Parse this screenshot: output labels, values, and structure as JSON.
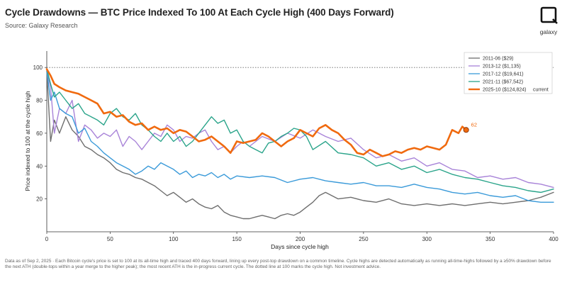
{
  "header": {
    "title": "Cycle Drawdowns — BTC Price Indexed To 100 At Each Cycle High (400 Days Forward)",
    "subtitle": "Source: Galaxy Research",
    "logo_text": "galaxy"
  },
  "footnote": "Data as of Sep 2, 2025 · Each Bitcoin cycle's price is set to 100 at its all-time high and traced 400 days forward, lining up every post-top drawdown on a common timeline. Cycle highs are detected automatically as running all-time-highs followed by a ≥50% drawdown before the next ATH (double-tops within a year merge to the higher peak); the most recent ATH is the in-progress current cycle. The dotted line at 100 marks the cycle high. Not investment advice.",
  "chart_data": {
    "type": "line",
    "xlabel": "Days since cycle high",
    "ylabel": "Price indexed to 100 at the cycle high",
    "xlim": [
      0,
      400
    ],
    "ylim": [
      0,
      110
    ],
    "xticks": [
      0,
      50,
      100,
      150,
      200,
      250,
      300,
      350,
      400
    ],
    "yticks": [
      20,
      40,
      60,
      80,
      100
    ],
    "reference_line": 100,
    "grid": false,
    "legend_position": "top-right",
    "legend_suffix": "current",
    "end_label": {
      "series": "2025-10 ($124,824)",
      "x": 331,
      "y": 62,
      "text": "62"
    },
    "series": [
      {
        "name": "2011-06 ($29)",
        "color": "#6e6e6e",
        "width": 1.4,
        "x": [
          0,
          3,
          6,
          10,
          15,
          20,
          25,
          30,
          35,
          40,
          45,
          50,
          55,
          60,
          65,
          70,
          75,
          80,
          85,
          90,
          95,
          100,
          105,
          110,
          115,
          120,
          125,
          130,
          135,
          140,
          145,
          150,
          155,
          160,
          165,
          170,
          175,
          180,
          185,
          190,
          195,
          200,
          205,
          210,
          215,
          220,
          225,
          230,
          240,
          250,
          260,
          270,
          280,
          290,
          300,
          310,
          320,
          330,
          340,
          350,
          360,
          370,
          380,
          390,
          400
        ],
        "y": [
          98,
          55,
          68,
          60,
          70,
          62,
          58,
          52,
          50,
          47,
          45,
          42,
          38,
          36,
          35,
          33,
          32,
          30,
          28,
          25,
          22,
          24,
          21,
          18,
          20,
          17,
          15,
          14,
          16,
          12,
          10,
          9,
          8,
          8,
          9,
          10,
          9,
          8,
          10,
          11,
          10,
          12,
          15,
          18,
          22,
          24,
          22,
          20,
          21,
          19,
          18,
          20,
          17,
          16,
          17,
          16,
          17,
          16,
          17,
          18,
          17,
          18,
          19,
          21,
          24
        ]
      },
      {
        "name": "2013-12 ($1,135)",
        "color": "#a883d8",
        "width": 1.4,
        "x": [
          0,
          3,
          6,
          10,
          15,
          20,
          25,
          30,
          35,
          40,
          45,
          50,
          55,
          60,
          65,
          70,
          75,
          80,
          85,
          90,
          95,
          100,
          105,
          110,
          115,
          120,
          125,
          130,
          135,
          140,
          145,
          150,
          155,
          160,
          170,
          180,
          190,
          200,
          210,
          220,
          230,
          240,
          250,
          260,
          270,
          280,
          290,
          300,
          310,
          320,
          330,
          340,
          350,
          360,
          370,
          380,
          390,
          400
        ],
        "y": [
          98,
          88,
          60,
          75,
          72,
          80,
          55,
          65,
          62,
          57,
          60,
          58,
          62,
          52,
          58,
          55,
          50,
          55,
          60,
          58,
          65,
          62,
          55,
          58,
          57,
          60,
          62,
          55,
          50,
          52,
          48,
          52,
          55,
          52,
          58,
          55,
          60,
          57,
          62,
          58,
          55,
          57,
          50,
          45,
          47,
          43,
          45,
          40,
          42,
          38,
          37,
          33,
          34,
          32,
          33,
          30,
          29,
          27
        ]
      },
      {
        "name": "2017-12 ($19,641)",
        "color": "#3a9ad9",
        "width": 1.4,
        "x": [
          0,
          3,
          6,
          10,
          15,
          20,
          25,
          30,
          35,
          40,
          45,
          50,
          55,
          60,
          65,
          70,
          75,
          80,
          85,
          90,
          95,
          100,
          105,
          110,
          115,
          120,
          125,
          130,
          135,
          140,
          145,
          150,
          160,
          170,
          180,
          190,
          200,
          210,
          220,
          230,
          240,
          250,
          260,
          270,
          280,
          290,
          300,
          310,
          320,
          330,
          340,
          350,
          360,
          370,
          380,
          390,
          400
        ],
        "y": [
          98,
          80,
          85,
          75,
          72,
          70,
          60,
          63,
          55,
          52,
          48,
          45,
          42,
          40,
          38,
          35,
          37,
          40,
          38,
          42,
          40,
          38,
          35,
          37,
          33,
          35,
          34,
          36,
          33,
          35,
          32,
          34,
          33,
          34,
          33,
          30,
          32,
          33,
          31,
          30,
          29,
          30,
          28,
          28,
          27,
          29,
          27,
          26,
          24,
          23,
          24,
          22,
          21,
          22,
          19,
          18,
          18
        ]
      },
      {
        "name": "2021-11 ($67,542)",
        "color": "#2aa48a",
        "width": 1.4,
        "x": [
          0,
          3,
          6,
          10,
          15,
          20,
          25,
          30,
          35,
          40,
          45,
          50,
          55,
          60,
          65,
          70,
          75,
          80,
          85,
          90,
          95,
          100,
          105,
          110,
          115,
          120,
          125,
          130,
          135,
          140,
          145,
          150,
          155,
          160,
          165,
          170,
          175,
          180,
          185,
          190,
          195,
          200,
          205,
          210,
          220,
          230,
          240,
          250,
          260,
          270,
          280,
          290,
          300,
          310,
          320,
          330,
          340,
          350,
          360,
          370,
          380,
          390,
          400
        ],
        "y": [
          99,
          90,
          82,
          85,
          80,
          75,
          78,
          72,
          70,
          68,
          65,
          72,
          75,
          70,
          68,
          72,
          65,
          62,
          58,
          55,
          60,
          55,
          58,
          52,
          55,
          60,
          65,
          70,
          66,
          68,
          60,
          62,
          55,
          52,
          50,
          48,
          54,
          55,
          58,
          60,
          63,
          62,
          58,
          50,
          55,
          48,
          47,
          45,
          40,
          42,
          38,
          40,
          36,
          38,
          35,
          33,
          32,
          30,
          28,
          27,
          25,
          24,
          26
        ]
      },
      {
        "name": "2025-10 ($124,824)",
        "color": "#f06a0f",
        "width": 2.6,
        "current": true,
        "x": [
          0,
          3,
          6,
          10,
          15,
          20,
          25,
          30,
          35,
          40,
          45,
          50,
          55,
          60,
          65,
          70,
          75,
          80,
          85,
          90,
          95,
          100,
          105,
          110,
          115,
          120,
          125,
          130,
          135,
          140,
          145,
          150,
          155,
          160,
          165,
          170,
          175,
          180,
          185,
          190,
          195,
          200,
          205,
          210,
          215,
          220,
          225,
          230,
          235,
          240,
          245,
          250,
          255,
          260,
          265,
          270,
          275,
          280,
          285,
          290,
          295,
          300,
          305,
          310,
          315,
          320,
          325,
          328,
          331
        ],
        "y": [
          99,
          95,
          90,
          88,
          86,
          85,
          84,
          82,
          80,
          78,
          72,
          73,
          70,
          71,
          67,
          65,
          66,
          62,
          64,
          62,
          63,
          60,
          62,
          61,
          58,
          55,
          56,
          58,
          55,
          52,
          48,
          55,
          54,
          55,
          56,
          60,
          58,
          55,
          52,
          55,
          57,
          62,
          60,
          58,
          63,
          65,
          62,
          60,
          56,
          53,
          48,
          47,
          50,
          48,
          46,
          47,
          49,
          48,
          50,
          51,
          50,
          52,
          51,
          50,
          53,
          62,
          60,
          64,
          62
        ]
      }
    ]
  }
}
